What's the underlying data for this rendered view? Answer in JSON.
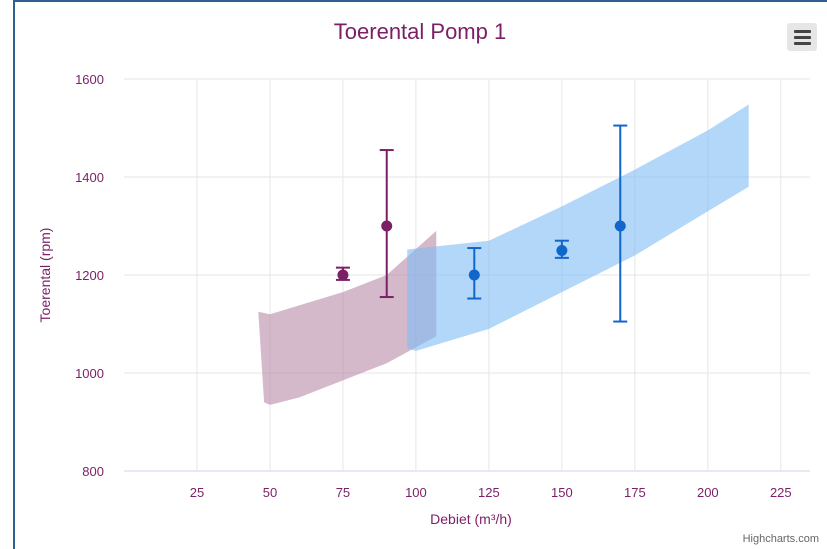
{
  "chart_data": {
    "type": "errorbar-band",
    "title": "Toerental Pomp 1",
    "xlabel": "Debiet (m³/h)",
    "ylabel": "Toerental (rpm)",
    "xlim": [
      0,
      235
    ],
    "ylim": [
      800,
      1600
    ],
    "xticks": [
      25,
      50,
      75,
      100,
      125,
      150,
      175,
      200,
      225
    ],
    "yticks": [
      800,
      1000,
      1200,
      1400,
      1600
    ],
    "grid": true,
    "series": [
      {
        "color": "#7b1f66",
        "band_color": "#b88aa8",
        "band": {
          "upper": [
            [
              46,
              1125
            ],
            [
              50,
              1120
            ],
            [
              75,
              1165
            ],
            [
              90,
              1200
            ],
            [
              107,
              1290
            ]
          ],
          "lower": [
            [
              107,
              1075
            ],
            [
              90,
              1020
            ],
            [
              75,
              985
            ],
            [
              60,
              950
            ],
            [
              50,
              935
            ],
            [
              48,
              940
            ]
          ]
        },
        "points": [
          {
            "x": 75,
            "y": 1200,
            "low": 1190,
            "high": 1215
          },
          {
            "x": 90,
            "y": 1300,
            "low": 1155,
            "high": 1455
          }
        ]
      },
      {
        "color": "#1166cc",
        "band_color": "#7fbcf5",
        "band": {
          "upper": [
            [
              97,
              1252
            ],
            [
              125,
              1270
            ],
            [
              150,
              1340
            ],
            [
              175,
              1415
            ],
            [
              200,
              1495
            ],
            [
              214,
              1548
            ]
          ],
          "lower": [
            [
              214,
              1380
            ],
            [
              200,
              1330
            ],
            [
              175,
              1240
            ],
            [
              150,
              1165
            ],
            [
              125,
              1090
            ],
            [
              100,
              1045
            ],
            [
              97,
              1050
            ]
          ]
        },
        "points": [
          {
            "x": 120,
            "y": 1200,
            "low": 1152,
            "high": 1255
          },
          {
            "x": 150,
            "y": 1250,
            "low": 1235,
            "high": 1270
          },
          {
            "x": 170,
            "y": 1300,
            "low": 1105,
            "high": 1505
          }
        ]
      }
    ]
  },
  "toolbar": {
    "menu_icon": "hamburger-menu-icon"
  },
  "credits": "Highcharts.com"
}
